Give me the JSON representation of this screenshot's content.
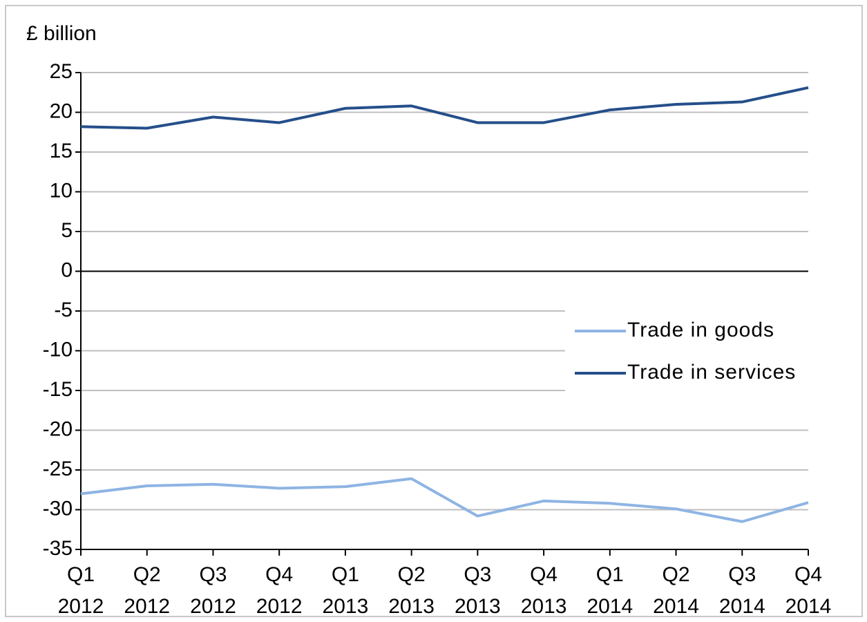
{
  "chart_data": {
    "type": "line",
    "y_label": "£ billion",
    "categories": [
      "Q1 2012",
      "Q2 2012",
      "Q3 2012",
      "Q4 2012",
      "Q1 2013",
      "Q2 2013",
      "Q3 2013",
      "Q4 2013",
      "Q1 2014",
      "Q2 2014",
      "Q3 2014",
      "Q4 2014"
    ],
    "series": [
      {
        "name": "Trade in goods",
        "color": "#8eb4e3",
        "values": [
          -28.0,
          -27.0,
          -26.8,
          -27.3,
          -27.1,
          -26.1,
          -30.8,
          -28.9,
          -29.2,
          -29.9,
          -31.5,
          -29.1
        ]
      },
      {
        "name": "Trade in services",
        "color": "#254f8a",
        "values": [
          18.2,
          18.0,
          19.4,
          18.7,
          20.5,
          20.8,
          18.7,
          18.7,
          20.3,
          21.0,
          21.3,
          23.1
        ]
      }
    ],
    "ylim": [
      -35,
      25
    ],
    "yticks": [
      -35,
      -30,
      -25,
      -20,
      -15,
      -10,
      -5,
      0,
      5,
      10,
      15,
      20,
      25
    ],
    "grid": true,
    "legend": "right"
  }
}
